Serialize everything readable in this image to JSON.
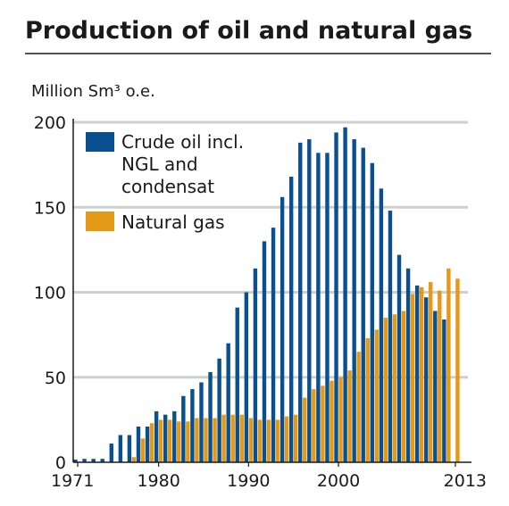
{
  "chart_data": {
    "type": "bar",
    "title": "Production of oil and natural gas",
    "ylabel": "Million Sm³ o.e.",
    "xlabel": "",
    "ylim": [
      0,
      200
    ],
    "yticks": [
      0,
      50,
      100,
      150,
      200
    ],
    "xticks": [
      1971,
      1980,
      1990,
      2000,
      2013
    ],
    "grid": true,
    "legend": "top-left",
    "colors": {
      "oil": "#0a4f8f",
      "gas": "#e49a16",
      "grid": "#cfcfcf",
      "axis": "#1a1a1a"
    },
    "x": [
      1971,
      1972,
      1973,
      1974,
      1975,
      1976,
      1977,
      1978,
      1979,
      1980,
      1981,
      1982,
      1983,
      1984,
      1985,
      1986,
      1987,
      1988,
      1989,
      1990,
      1991,
      1992,
      1993,
      1994,
      1995,
      1996,
      1997,
      1998,
      1999,
      2000,
      2001,
      2002,
      2003,
      2004,
      2005,
      2006,
      2007,
      2008,
      2009,
      2010,
      2011,
      2012,
      2013
    ],
    "series": [
      {
        "name": "Crude oil incl. NGL and condensat",
        "key": "oil",
        "values": [
          1.6,
          2,
          2,
          2,
          11,
          16,
          16,
          21,
          21,
          30,
          28,
          30,
          39,
          43,
          47,
          53,
          61,
          70,
          91,
          100,
          114,
          130,
          138,
          156,
          168,
          188,
          190,
          182,
          182,
          194,
          197,
          190,
          185,
          176,
          161,
          148,
          122,
          114,
          104,
          97,
          89,
          84,
          0
        ]
      },
      {
        "name": "Natural gas",
        "key": "gas",
        "values": [
          0,
          0,
          0,
          0,
          0,
          0,
          3,
          14,
          23,
          25,
          25,
          24,
          24,
          26,
          26,
          26,
          28,
          28,
          28,
          26,
          25,
          25,
          25,
          27,
          28,
          38,
          43,
          45,
          48,
          50,
          54,
          65,
          73,
          78,
          85,
          87,
          89,
          99,
          103,
          106,
          101,
          114,
          108
        ]
      }
    ]
  }
}
